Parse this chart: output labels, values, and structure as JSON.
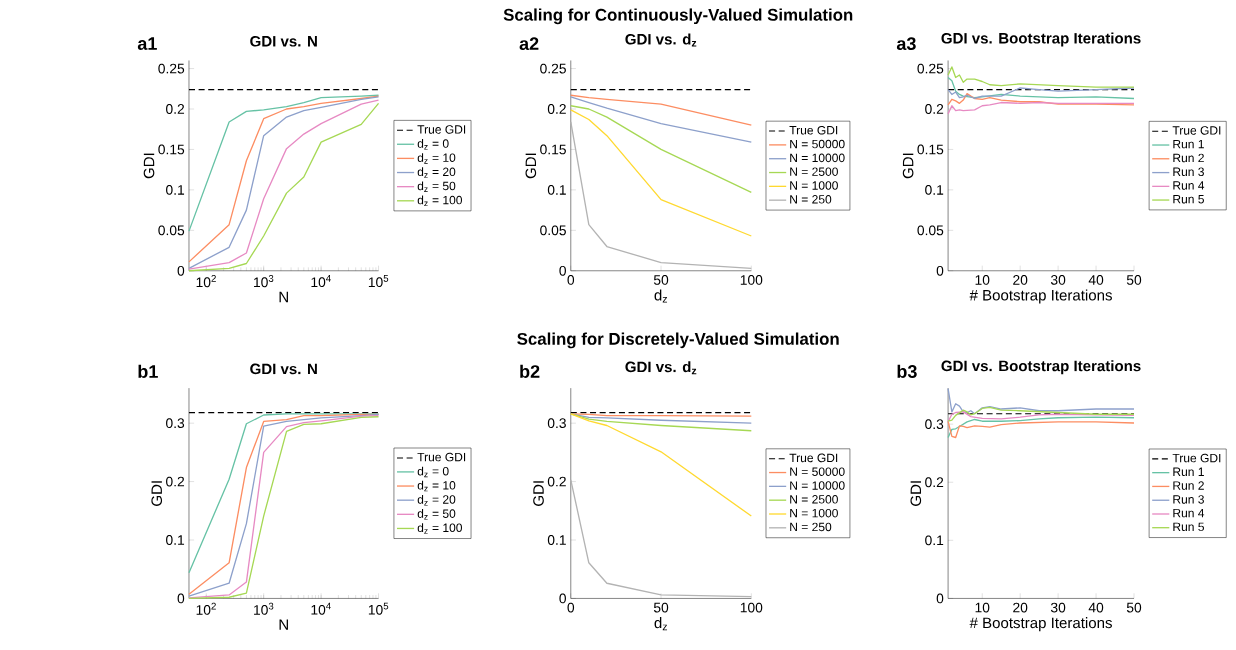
{
  "chart_data": [
    {
      "type": "line",
      "title": "GDI vs. N",
      "xlabel": "N",
      "ylabel": "GDI",
      "annotations": [
        "a1",
        "Scaling for Continuously-Valued Simulation"
      ],
      "log": "x",
      "legend": "right",
      "x": [
        50,
        250,
        500,
        1000,
        2500,
        5000,
        10000,
        50000,
        100000
      ],
      "xlim": [
        50,
        100000
      ],
      "xticks": [
        {
          "value": 100,
          "label": "10$^{2}$"
        },
        {
          "value": 1000,
          "label": "10$^{3}$"
        },
        {
          "value": 10000,
          "label": "10$^{4}$"
        },
        {
          "value": 100000,
          "label": "10$^{5}$"
        }
      ],
      "ylim": [
        0,
        0.26
      ],
      "yticks": [
        0,
        0.05,
        0.1,
        0.15,
        0.2,
        0.25
      ],
      "ref_lines": [
        {
          "axis": "y",
          "value": 0.224,
          "label": "True GDI",
          "color": "#000000",
          "line_style": "dashed"
        }
      ],
      "series": [
        {
          "name": "d$_{z}$ = 0",
          "color": "#66c2a5",
          "values": [
            0.049,
            0.184,
            0.197,
            0.199,
            0.203,
            0.208,
            0.214,
            0.216,
            0.217
          ]
        },
        {
          "name": "d$_{z}$ = 10",
          "color": "#fc8d62",
          "values": [
            0.011,
            0.057,
            0.136,
            0.188,
            0.2,
            0.203,
            0.207,
            0.213,
            0.216
          ]
        },
        {
          "name": "d$_{z}$ = 20",
          "color": "#8da0cb",
          "values": [
            0.003,
            0.029,
            0.075,
            0.167,
            0.19,
            0.198,
            0.202,
            0.212,
            0.215
          ]
        },
        {
          "name": "d$_{z}$ = 50",
          "color": "#e78ac3",
          "values": [
            0.002,
            0.01,
            0.022,
            0.089,
            0.151,
            0.169,
            0.182,
            0.206,
            0.211
          ]
        },
        {
          "name": "d$_{z}$ = 100",
          "color": "#a6d854",
          "values": [
            0,
            0.003,
            0.009,
            0.043,
            0.096,
            0.116,
            0.159,
            0.181,
            0.207
          ]
        }
      ]
    },
    {
      "type": "line",
      "title": "GDI vs. d$_{z}$",
      "xlabel": "d$_{z}$",
      "ylabel": "GDI",
      "annotations": [
        "a2"
      ],
      "legend": "right",
      "x": [
        0,
        10,
        20,
        50,
        100
      ],
      "xlim": [
        0,
        100
      ],
      "xticks": [
        0,
        50,
        100
      ],
      "ylim": [
        0,
        0.26
      ],
      "yticks": [
        0,
        0.05,
        0.1,
        0.15,
        0.2,
        0.25
      ],
      "ref_lines": [
        {
          "axis": "y",
          "value": 0.224,
          "label": "True GDI",
          "color": "#000000",
          "line_style": "dashed"
        }
      ],
      "series": [
        {
          "name": "N = 50000",
          "color": "#fc8d62",
          "values": [
            0.217,
            0.214,
            0.212,
            0.206,
            0.18
          ]
        },
        {
          "name": "N = 10000",
          "color": "#8da0cb",
          "values": [
            0.215,
            0.208,
            0.201,
            0.182,
            0.159
          ]
        },
        {
          "name": "N = 2500",
          "color": "#a6d854",
          "values": [
            0.204,
            0.2,
            0.19,
            0.15,
            0.097
          ]
        },
        {
          "name": "N = 1000",
          "color": "#ffd92f",
          "values": [
            0.199,
            0.187,
            0.167,
            0.088,
            0.043
          ]
        },
        {
          "name": "N = 250",
          "color": "#b3b3b3",
          "values": [
            0.184,
            0.057,
            0.03,
            0.01,
            0.003
          ]
        }
      ]
    },
    {
      "type": "line",
      "title": "GDI vs. Bootstrap Iterations",
      "xlabel": "# Bootstrap Iterations",
      "ylabel": "GDI",
      "annotations": [
        "a3"
      ],
      "legend": "right",
      "xlim": [
        1,
        50
      ],
      "xticks": [
        10,
        20,
        30,
        40,
        50
      ],
      "ylim": [
        0,
        0.26
      ],
      "yticks": [
        0,
        0.05,
        0.1,
        0.15,
        0.2,
        0.25
      ],
      "ref_lines": [
        {
          "axis": "y",
          "value": 0.224,
          "label": "True GDI",
          "color": "#000000",
          "line_style": "dashed"
        }
      ],
      "series": [
        {
          "name": "Run 1",
          "color": "#66c2a5",
          "x": [
            1,
            2,
            3,
            4,
            5,
            8,
            10,
            15,
            20,
            30,
            40,
            50
          ],
          "values": [
            0.239,
            0.235,
            0.222,
            0.218,
            0.216,
            0.214,
            0.215,
            0.218,
            0.216,
            0.214,
            0.215,
            0.213
          ]
        },
        {
          "name": "Run 2",
          "color": "#fc8d62",
          "x": [
            1,
            2,
            3,
            4,
            5,
            6,
            8,
            10,
            12,
            15,
            20,
            25,
            30,
            40,
            50
          ],
          "values": [
            0.205,
            0.212,
            0.21,
            0.207,
            0.211,
            0.219,
            0.213,
            0.212,
            0.214,
            0.211,
            0.209,
            0.209,
            0.206,
            0.206,
            0.205
          ]
        },
        {
          "name": "Run 3",
          "color": "#8da0cb",
          "x": [
            1,
            2,
            3,
            4,
            5,
            6,
            8,
            10,
            15,
            20,
            25,
            30,
            40,
            50
          ],
          "values": [
            0.224,
            0.218,
            0.221,
            0.214,
            0.215,
            0.217,
            0.213,
            0.216,
            0.216,
            0.226,
            0.224,
            0.222,
            0.224,
            0.226
          ]
        },
        {
          "name": "Run 4",
          "color": "#e78ac3",
          "x": [
            1,
            2,
            3,
            4,
            5,
            8,
            10,
            12,
            15,
            20,
            25,
            30,
            40,
            50
          ],
          "values": [
            0.194,
            0.204,
            0.198,
            0.199,
            0.198,
            0.199,
            0.204,
            0.205,
            0.208,
            0.207,
            0.208,
            0.207,
            0.207,
            0.207
          ]
        },
        {
          "name": "Run 5",
          "color": "#a6d854",
          "x": [
            1,
            2,
            3,
            4,
            5,
            6,
            8,
            10,
            12,
            15,
            20,
            30,
            40,
            50
          ],
          "values": [
            0.242,
            0.252,
            0.239,
            0.242,
            0.233,
            0.237,
            0.237,
            0.234,
            0.23,
            0.229,
            0.231,
            0.229,
            0.227,
            0.227
          ]
        }
      ]
    },
    {
      "type": "line",
      "title": "GDI vs. N",
      "xlabel": "N",
      "ylabel": "GDI",
      "annotations": [
        "b1",
        "Scaling for Discretely-Valued Simulation"
      ],
      "log": "x",
      "legend": "right",
      "x": [
        50,
        250,
        500,
        1000,
        2500,
        5000,
        10000,
        50000,
        100000
      ],
      "xlim": [
        50,
        100000
      ],
      "xticks": [
        {
          "value": 100,
          "label": "10$^{2}$"
        },
        {
          "value": 1000,
          "label": "10$^{3}$"
        },
        {
          "value": 10000,
          "label": "10$^{4}$"
        },
        {
          "value": 100000,
          "label": "10$^{5}$"
        }
      ],
      "ylim": [
        0,
        0.36
      ],
      "yticks": [
        0,
        0.1,
        0.2,
        0.3
      ],
      "ref_lines": [
        {
          "axis": "y",
          "value": 0.318,
          "label": "True GDI",
          "color": "#000000",
          "line_style": "dashed"
        }
      ],
      "series": [
        {
          "name": "d$_{z}$ = 0",
          "color": "#66c2a5",
          "values": [
            0.044,
            0.204,
            0.299,
            0.314,
            0.316,
            0.316,
            0.316,
            0.316,
            0.316
          ]
        },
        {
          "name": "d$_{z}$ = 10",
          "color": "#fc8d62",
          "values": [
            0.007,
            0.061,
            0.224,
            0.303,
            0.306,
            0.313,
            0.313,
            0.315,
            0.315
          ]
        },
        {
          "name": "d$_{z}$ = 20",
          "color": "#8da0cb",
          "values": [
            0.004,
            0.026,
            0.128,
            0.295,
            0.303,
            0.306,
            0.309,
            0.313,
            0.315
          ]
        },
        {
          "name": "d$_{z}$ = 50",
          "color": "#e78ac3",
          "values": [
            0.001,
            0.006,
            0.028,
            0.25,
            0.294,
            0.301,
            0.304,
            0.312,
            0.313
          ]
        },
        {
          "name": "d$_{z}$ = 100",
          "color": "#a6d854",
          "values": [
            0,
            0.002,
            0.009,
            0.141,
            0.286,
            0.298,
            0.299,
            0.31,
            0.311
          ]
        }
      ]
    },
    {
      "type": "line",
      "title": "GDI vs. d$_{z}$",
      "xlabel": "d$_{z}$",
      "ylabel": "GDI",
      "annotations": [
        "b2"
      ],
      "legend": "right",
      "x": [
        0,
        10,
        20,
        50,
        100
      ],
      "xlim": [
        0,
        100
      ],
      "xticks": [
        0,
        50,
        100
      ],
      "ylim": [
        0,
        0.36
      ],
      "yticks": [
        0,
        0.1,
        0.2,
        0.3
      ],
      "ref_lines": [
        {
          "axis": "y",
          "value": 0.318,
          "label": "True GDI",
          "color": "#000000",
          "line_style": "dashed"
        }
      ],
      "series": [
        {
          "name": "N = 50000",
          "color": "#fc8d62",
          "values": [
            0.316,
            0.315,
            0.313,
            0.313,
            0.312
          ]
        },
        {
          "name": "N = 10000",
          "color": "#8da0cb",
          "values": [
            0.316,
            0.31,
            0.309,
            0.305,
            0.3
          ]
        },
        {
          "name": "N = 2500",
          "color": "#a6d854",
          "values": [
            0.316,
            0.307,
            0.303,
            0.296,
            0.287
          ]
        },
        {
          "name": "N = 1000",
          "color": "#ffd92f",
          "values": [
            0.316,
            0.304,
            0.296,
            0.251,
            0.141
          ]
        },
        {
          "name": "N = 250",
          "color": "#b3b3b3",
          "values": [
            0.203,
            0.061,
            0.026,
            0.006,
            0.003
          ]
        }
      ]
    },
    {
      "type": "line",
      "title": "GDI vs. Bootstrap Iterations",
      "xlabel": "# Bootstrap Iterations",
      "ylabel": "GDI",
      "annotations": [
        "b3"
      ],
      "legend": "right",
      "xlim": [
        1,
        50
      ],
      "xticks": [
        10,
        20,
        30,
        40,
        50
      ],
      "ylim": [
        0,
        0.362
      ],
      "yticks": [
        0,
        0.1,
        0.2,
        0.3
      ],
      "ref_lines": [
        {
          "axis": "y",
          "value": 0.318,
          "label": "True GDI",
          "color": "#000000",
          "line_style": "dashed"
        }
      ],
      "series": [
        {
          "name": "Run 1",
          "color": "#66c2a5",
          "x": [
            1,
            2,
            3,
            4,
            5,
            6,
            8,
            10,
            15,
            20,
            25,
            30,
            40,
            50
          ],
          "values": [
            0.277,
            0.291,
            0.292,
            0.296,
            0.3,
            0.304,
            0.308,
            0.305,
            0.305,
            0.306,
            0.309,
            0.311,
            0.312,
            0.311
          ]
        },
        {
          "name": "Run 2",
          "color": "#fc8d62",
          "x": [
            1,
            2,
            3,
            4,
            5,
            6,
            8,
            10,
            12,
            15,
            20,
            30,
            40,
            50
          ],
          "values": [
            0.305,
            0.279,
            0.277,
            0.297,
            0.296,
            0.294,
            0.297,
            0.296,
            0.295,
            0.299,
            0.302,
            0.304,
            0.304,
            0.302
          ]
        },
        {
          "name": "Run 3",
          "color": "#8da0cb",
          "x": [
            1,
            2,
            3,
            4,
            5,
            6,
            7,
            8,
            10,
            12,
            15,
            20,
            25,
            30,
            40,
            50
          ],
          "values": [
            0.361,
            0.321,
            0.335,
            0.331,
            0.321,
            0.32,
            0.323,
            0.318,
            0.328,
            0.33,
            0.326,
            0.328,
            0.323,
            0.323,
            0.326,
            0.326
          ]
        },
        {
          "name": "Run 4",
          "color": "#e78ac3",
          "x": [
            1,
            2,
            3,
            5,
            7,
            10,
            15,
            20,
            25,
            30,
            40,
            50
          ],
          "values": [
            0.304,
            0.317,
            0.32,
            0.321,
            0.313,
            0.31,
            0.309,
            0.312,
            0.316,
            0.317,
            0.316,
            0.315
          ]
        },
        {
          "name": "Run 5",
          "color": "#a6d854",
          "x": [
            1,
            2,
            3,
            5,
            6,
            7,
            8,
            10,
            12,
            15,
            20,
            30,
            40,
            50
          ],
          "values": [
            0.305,
            0.307,
            0.315,
            0.324,
            0.321,
            0.316,
            0.318,
            0.327,
            0.329,
            0.324,
            0.323,
            0.32,
            0.317,
            0.317
          ]
        }
      ]
    }
  ]
}
